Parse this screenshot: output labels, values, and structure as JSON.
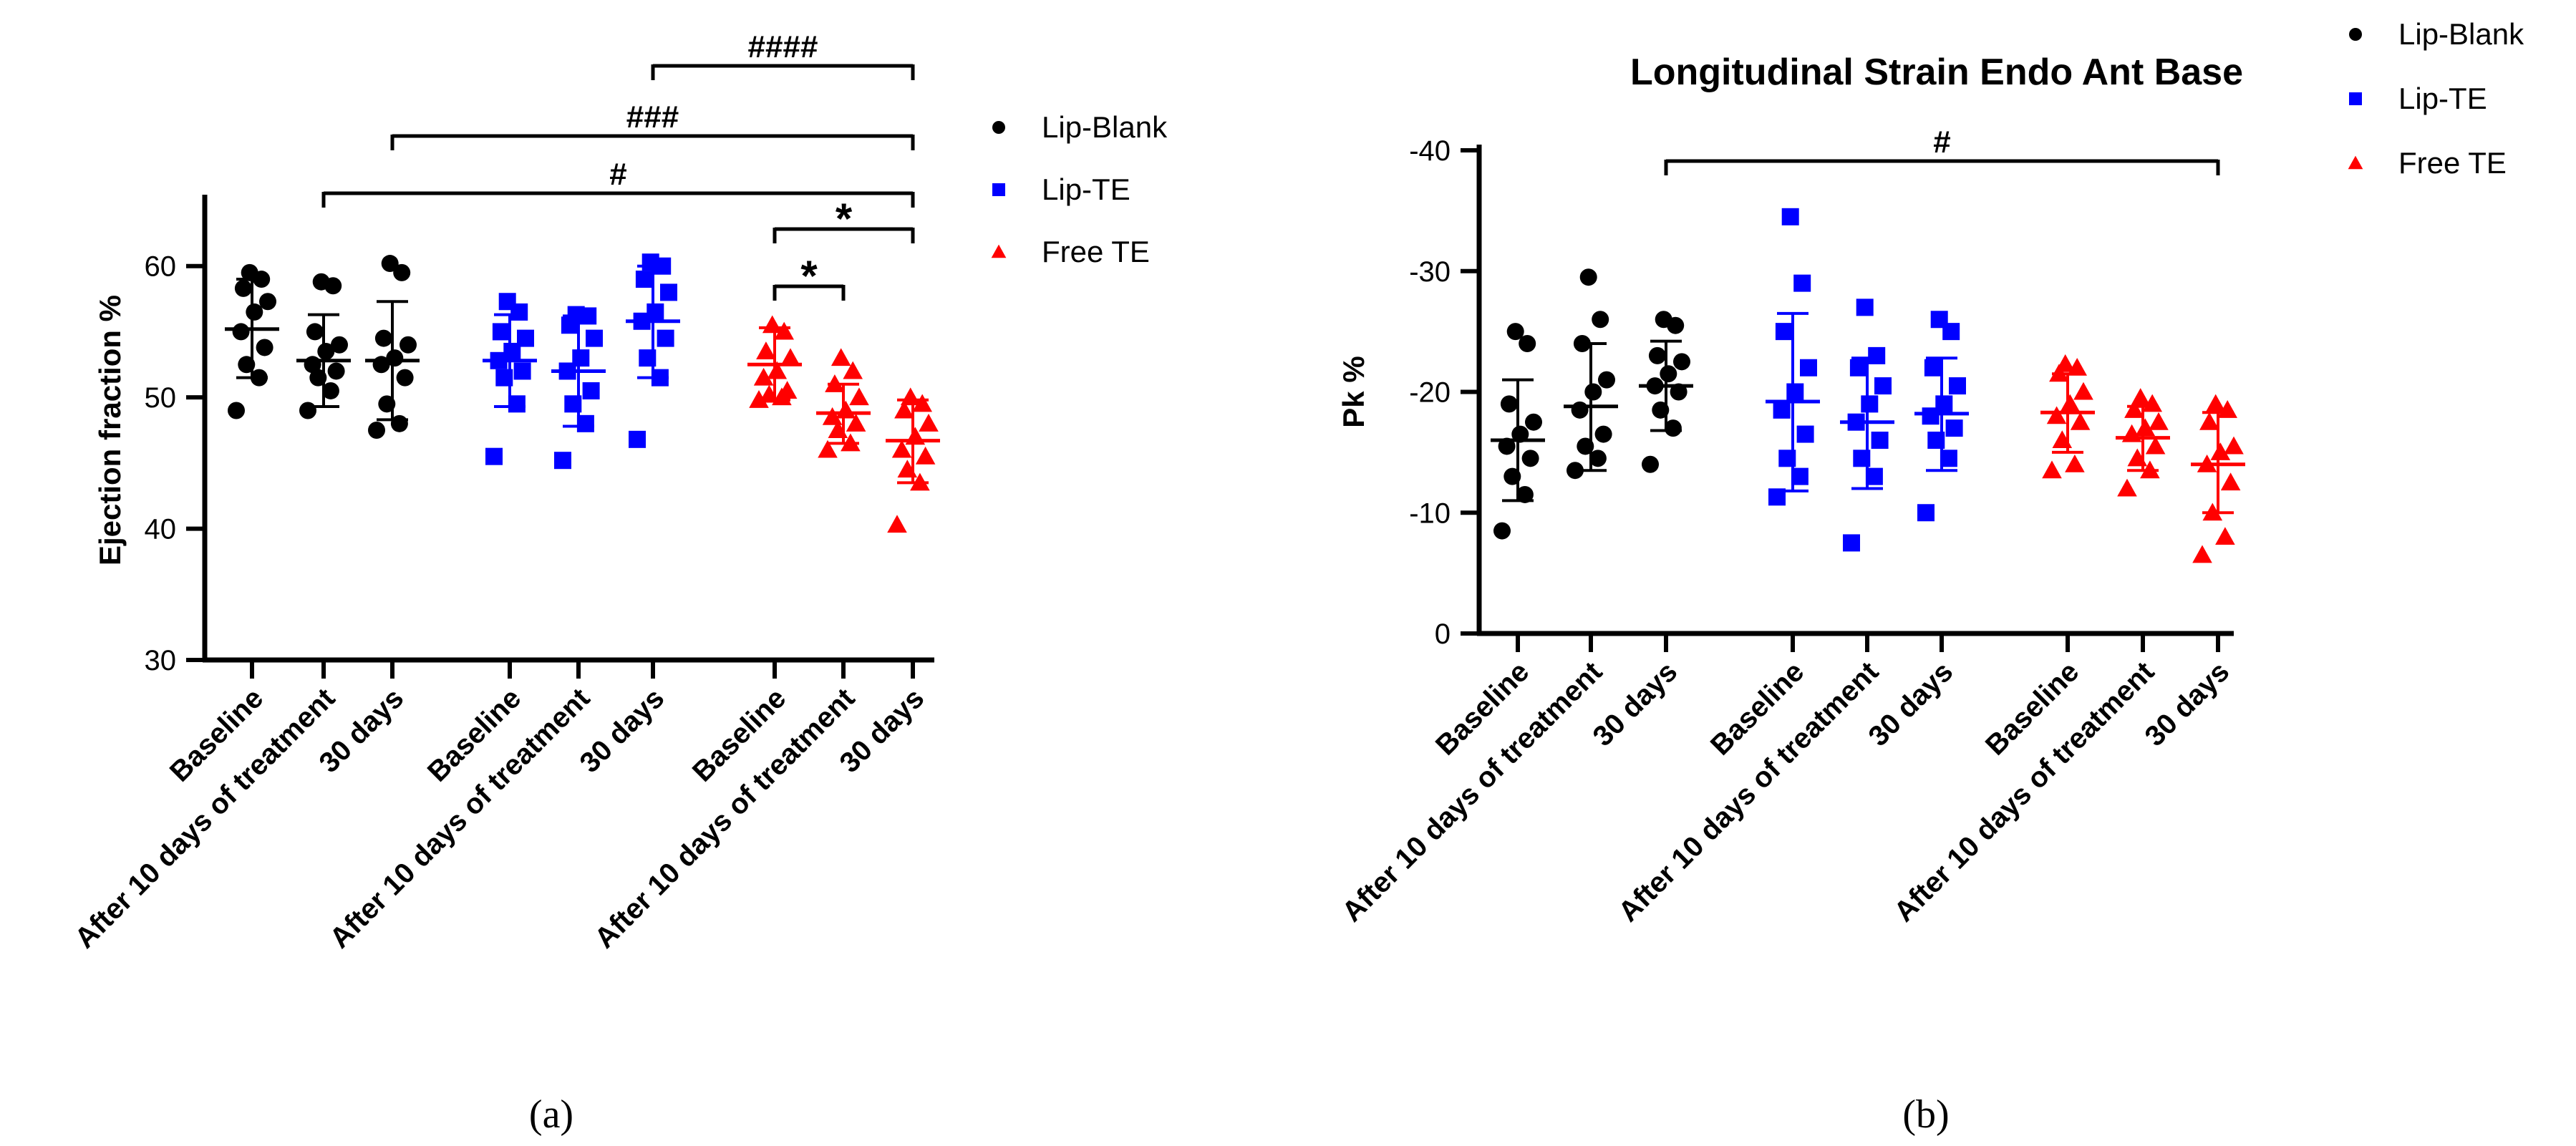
{
  "colors": {
    "Lip-Blank": "#000000",
    "Lip-TE": "#0000ff",
    "Free TE": "#ff0000"
  },
  "panels": {
    "a": {
      "caption": "(a)"
    },
    "b": {
      "caption": "(b)"
    }
  },
  "chart_data": [
    {
      "type": "scatter",
      "panel": "a",
      "title": "",
      "xlabel": "",
      "ylabel": "Ejection fraction %",
      "ylim": [
        30,
        65
      ],
      "yticks": [
        "30",
        "40",
        "50",
        "60"
      ],
      "categories": [
        "Baseline",
        "After 10 days of treatment",
        "30 days",
        "Baseline",
        "After 10 days of treatment",
        "30 days",
        "Baseline",
        "After 10 days of treatment",
        "30 days"
      ],
      "legend": {
        "position": "right",
        "entries": [
          "Lip-Blank",
          "Lip-TE",
          "Free TE"
        ]
      },
      "series": [
        {
          "name": "Lip-Blank",
          "marker": "circle",
          "groups": [
            {
              "category": "Baseline",
              "mean": 55.2,
              "sd_low": 51.5,
              "sd_high": 59.0,
              "points": [
                49.0,
                51.5,
                52.5,
                53.8,
                55.0,
                56.5,
                57.3,
                58.3,
                59.0,
                59.5
              ]
            },
            {
              "category": "After 10 days of treatment",
              "mean": 52.8,
              "sd_low": 49.3,
              "sd_high": 56.3,
              "points": [
                49.0,
                50.5,
                51.5,
                52.0,
                52.5,
                53.5,
                54.0,
                55.0,
                58.5,
                58.8
              ]
            },
            {
              "category": "30 days",
              "mean": 52.8,
              "sd_low": 48.3,
              "sd_high": 57.3,
              "points": [
                47.5,
                48.0,
                49.5,
                51.5,
                52.5,
                53.0,
                54.0,
                54.5,
                59.5,
                60.2
              ]
            }
          ]
        },
        {
          "name": "Lip-TE",
          "marker": "square",
          "groups": [
            {
              "category": "Baseline",
              "mean": 52.8,
              "sd_low": 49.3,
              "sd_high": 56.3,
              "points": [
                45.5,
                49.5,
                51.5,
                52.0,
                52.8,
                53.5,
                54.5,
                55.0,
                56.5,
                57.3
              ]
            },
            {
              "category": "After 10 days of treatment",
              "mean": 52.0,
              "sd_low": 47.8,
              "sd_high": 56.2,
              "points": [
                45.2,
                48.0,
                49.5,
                50.5,
                52.0,
                53.0,
                54.5,
                55.5,
                56.2,
                56.3
              ]
            },
            {
              "category": "30 days",
              "mean": 55.8,
              "sd_low": 51.5,
              "sd_high": 60.0,
              "points": [
                46.8,
                51.5,
                53.0,
                54.5,
                55.8,
                56.5,
                58.0,
                59.0,
                60.0,
                60.3
              ]
            }
          ]
        },
        {
          "name": "Free TE",
          "marker": "triangle",
          "groups": [
            {
              "category": "Baseline",
              "mean": 52.5,
              "sd_low": 49.8,
              "sd_high": 55.3,
              "points": [
                49.8,
                50.0,
                50.2,
                50.5,
                51.5,
                52.0,
                53.0,
                53.5,
                55.0,
                55.5
              ]
            },
            {
              "category": "After 10 days of treatment",
              "mean": 48.8,
              "sd_low": 46.5,
              "sd_high": 51.0,
              "points": [
                46.0,
                46.5,
                47.5,
                48.0,
                48.5,
                49.0,
                50.0,
                51.0,
                52.0,
                53.0
              ]
            },
            {
              "category": "30 days",
              "mean": 46.7,
              "sd_low": 43.5,
              "sd_high": 49.8,
              "points": [
                40.3,
                43.5,
                44.5,
                45.5,
                46.0,
                47.0,
                48.0,
                49.0,
                49.5,
                50.0
              ]
            }
          ]
        }
      ],
      "annotations": [
        {
          "label": "####",
          "from": 5,
          "to": 8
        },
        {
          "label": "###",
          "from": 2,
          "to": 8
        },
        {
          "label": "#",
          "from": 1,
          "to": 8
        },
        {
          "label": "*",
          "from": 6,
          "to": 8
        },
        {
          "label": "*",
          "from": 6,
          "to": 7
        }
      ]
    },
    {
      "type": "scatter",
      "panel": "b",
      "title": "Longitudinal Strain Endo Ant Base",
      "xlabel": "",
      "ylabel": "Pk %",
      "ylim": [
        0,
        -40
      ],
      "yticks": [
        "0",
        "-10",
        "-20",
        "-30",
        "-40"
      ],
      "categories": [
        "Baseline",
        "After 10 days of treatment",
        "30 days",
        "Baseline",
        "After 10 days of treatment",
        "30 days",
        "Baseline",
        "After 10 days of treatment",
        "30 days"
      ],
      "legend": {
        "position": "top-right",
        "entries": [
          "Lip-Blank",
          "Lip-TE",
          "Free TE"
        ]
      },
      "series": [
        {
          "name": "Lip-Blank",
          "marker": "circle",
          "groups": [
            {
              "category": "Baseline",
              "mean": -16.0,
              "sd_low": -11.0,
              "sd_high": -21.0,
              "points": [
                -8.5,
                -11.5,
                -13.0,
                -14.5,
                -15.5,
                -16.5,
                -17.5,
                -19.0,
                -24.0,
                -25.0
              ]
            },
            {
              "category": "After 10 days of treatment",
              "mean": -18.8,
              "sd_low": -13.5,
              "sd_high": -24.0,
              "points": [
                -13.5,
                -14.5,
                -15.5,
                -16.5,
                -18.5,
                -20.0,
                -21.0,
                -24.0,
                -26.0,
                -29.5
              ]
            },
            {
              "category": "30 days",
              "mean": -20.5,
              "sd_low": -16.8,
              "sd_high": -24.2,
              "points": [
                -14.0,
                -17.0,
                -18.5,
                -20.0,
                -20.5,
                -21.5,
                -22.5,
                -23.0,
                -25.5,
                -26.0
              ]
            }
          ]
        },
        {
          "name": "Lip-TE",
          "marker": "square",
          "groups": [
            {
              "category": "Baseline",
              "mean": -19.2,
              "sd_low": -11.8,
              "sd_high": -26.5,
              "points": [
                -11.3,
                -13.0,
                -14.5,
                -16.5,
                -18.5,
                -20.0,
                -22.0,
                -25.0,
                -29.0,
                -34.5
              ]
            },
            {
              "category": "After 10 days of treatment",
              "mean": -17.5,
              "sd_low": -12.0,
              "sd_high": -22.8,
              "points": [
                -7.5,
                -13.0,
                -14.5,
                -16.0,
                -17.5,
                -19.0,
                -20.5,
                -22.0,
                -23.0,
                -27.0
              ]
            },
            {
              "category": "30 days",
              "mean": -18.2,
              "sd_low": -13.5,
              "sd_high": -22.8,
              "points": [
                -10.0,
                -14.5,
                -16.0,
                -17.0,
                -18.0,
                -19.0,
                -20.5,
                -22.0,
                -25.0,
                -26.0
              ]
            }
          ]
        },
        {
          "name": "Free TE",
          "marker": "triangle",
          "groups": [
            {
              "category": "Baseline",
              "mean": -18.3,
              "sd_low": -15.0,
              "sd_high": -21.5,
              "points": [
                -13.5,
                -14.0,
                -16.0,
                -17.5,
                -18.0,
                -19.0,
                -20.0,
                -21.5,
                -22.0,
                -22.3
              ]
            },
            {
              "category": "After 10 days of treatment",
              "mean": -16.2,
              "sd_low": -13.5,
              "sd_high": -18.8,
              "points": [
                -12.0,
                -13.5,
                -14.5,
                -15.5,
                -16.5,
                -17.0,
                -17.5,
                -18.5,
                -19.0,
                -19.5
              ]
            },
            {
              "category": "30 days",
              "mean": -14.0,
              "sd_low": -10.0,
              "sd_high": -18.3,
              "points": [
                -6.5,
                -8.0,
                -10.0,
                -12.5,
                -14.0,
                -15.0,
                -15.5,
                -17.5,
                -18.5,
                -19.0
              ]
            }
          ]
        }
      ],
      "annotations": [
        {
          "label": "#",
          "from": 2,
          "to": 8
        }
      ]
    }
  ]
}
